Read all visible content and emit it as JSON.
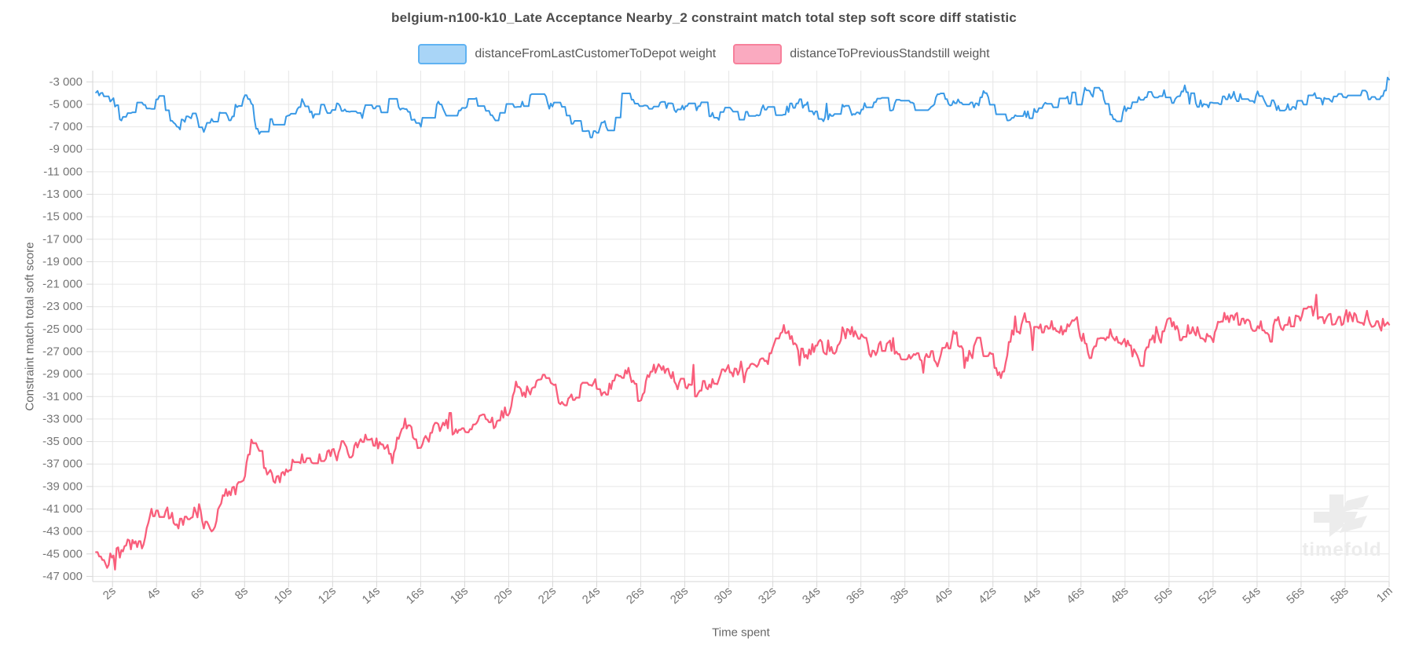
{
  "page": {
    "background": "#ffffff"
  },
  "chart_data": {
    "type": "line",
    "title": "belgium-n100-k10_Late Acceptance Nearby_2 constraint match total step soft score diff statistic",
    "xlabel": "Time spent",
    "ylabel": "Constraint match total soft score",
    "legend_position": "top",
    "grid": true,
    "watermark": "timefold",
    "colors": {
      "grid": "#e6e6e6",
      "axis_border": "#d6d6d6",
      "tick_label": "#757575",
      "watermark": "#ececec"
    },
    "x_domain_seconds": [
      1.1,
      60
    ],
    "y_domain": [
      -47460,
      -2000
    ],
    "t_start": 1.25,
    "x_ticks": {
      "values": [
        2,
        4,
        6,
        8,
        10,
        12,
        14,
        16,
        18,
        20,
        22,
        24,
        26,
        28,
        30,
        32,
        34,
        36,
        38,
        40,
        42,
        44,
        46,
        48,
        50,
        52,
        54,
        56,
        58,
        60
      ],
      "labels": [
        "2s",
        "4s",
        "6s",
        "8s",
        "10s",
        "12s",
        "14s",
        "16s",
        "18s",
        "20s",
        "22s",
        "24s",
        "26s",
        "28s",
        "30s",
        "32s",
        "34s",
        "36s",
        "38s",
        "40s",
        "42s",
        "44s",
        "46s",
        "48s",
        "50s",
        "52s",
        "54s",
        "56s",
        "58s",
        "1m"
      ]
    },
    "y_ticks": [
      -3000,
      -5000,
      -7000,
      -9000,
      -11000,
      -13000,
      -15000,
      -17000,
      -19000,
      -21000,
      -23000,
      -25000,
      -27000,
      -29000,
      -31000,
      -33000,
      -35000,
      -37000,
      -39000,
      -41000,
      -43000,
      -45000,
      -47000
    ],
    "series": [
      {
        "name": "distanceFromLastCustomerToDepot weight",
        "color": "#3999e6",
        "legend_fill": "#a9d5f7",
        "legend_border": "#5fb2f2",
        "line_width": 2,
        "noise_amp": 500,
        "hold_prob": 0.52,
        "seed": 11,
        "anchors": [
          [
            1.2,
            -4000
          ],
          [
            1.5,
            -3750
          ],
          [
            2.0,
            -4300
          ],
          [
            2.4,
            -6800
          ],
          [
            2.9,
            -5400
          ],
          [
            3.3,
            -5000
          ],
          [
            3.8,
            -5500
          ],
          [
            4.2,
            -4300
          ],
          [
            4.6,
            -6400
          ],
          [
            5.0,
            -7200
          ],
          [
            5.4,
            -5700
          ],
          [
            5.9,
            -6600
          ],
          [
            6.3,
            -7000
          ],
          [
            6.8,
            -5400
          ],
          [
            7.3,
            -5800
          ],
          [
            7.8,
            -4500
          ],
          [
            8.3,
            -4300
          ],
          [
            8.6,
            -7600
          ],
          [
            9.1,
            -6200
          ],
          [
            9.6,
            -6600
          ],
          [
            10.1,
            -5500
          ],
          [
            10.6,
            -4300
          ],
          [
            11.1,
            -6300
          ],
          [
            11.6,
            -5700
          ],
          [
            12.1,
            -4900
          ],
          [
            12.7,
            -5400
          ],
          [
            13.3,
            -5700
          ],
          [
            13.9,
            -5200
          ],
          [
            14.4,
            -4500
          ],
          [
            14.9,
            -5800
          ],
          [
            15.4,
            -5400
          ],
          [
            15.9,
            -6900
          ],
          [
            16.4,
            -5500
          ],
          [
            16.9,
            -4700
          ],
          [
            17.4,
            -6300
          ],
          [
            17.9,
            -5200
          ],
          [
            18.4,
            -4300
          ],
          [
            18.9,
            -6000
          ],
          [
            19.4,
            -6500
          ],
          [
            20.0,
            -5300
          ],
          [
            20.5,
            -4900
          ],
          [
            21.0,
            -4300
          ],
          [
            21.5,
            -3800
          ],
          [
            22.0,
            -5200
          ],
          [
            22.6,
            -6200
          ],
          [
            23.2,
            -7000
          ],
          [
            23.7,
            -7700
          ],
          [
            24.2,
            -6600
          ],
          [
            24.7,
            -7100
          ],
          [
            25.2,
            -4200
          ],
          [
            25.8,
            -5100
          ],
          [
            26.4,
            -5600
          ],
          [
            27.0,
            -5000
          ],
          [
            27.6,
            -5400
          ],
          [
            28.2,
            -5100
          ],
          [
            28.8,
            -5400
          ],
          [
            29.4,
            -6200
          ],
          [
            30.0,
            -5200
          ],
          [
            30.4,
            -6500
          ],
          [
            31.0,
            -5600
          ],
          [
            31.6,
            -5300
          ],
          [
            32.2,
            -5400
          ],
          [
            32.8,
            -5200
          ],
          [
            33.4,
            -5100
          ],
          [
            34.0,
            -5700
          ],
          [
            34.5,
            -6500
          ],
          [
            35.0,
            -5000
          ],
          [
            35.6,
            -5700
          ],
          [
            36.2,
            -5200
          ],
          [
            36.8,
            -4600
          ],
          [
            37.4,
            -5400
          ],
          [
            38.0,
            -4800
          ],
          [
            38.6,
            -5300
          ],
          [
            39.2,
            -4700
          ],
          [
            39.8,
            -4500
          ],
          [
            40.4,
            -4900
          ],
          [
            41.0,
            -4500
          ],
          [
            41.6,
            -4200
          ],
          [
            42.2,
            -5800
          ],
          [
            42.8,
            -6200
          ],
          [
            43.4,
            -5800
          ],
          [
            44.0,
            -5900
          ],
          [
            44.6,
            -5300
          ],
          [
            45.2,
            -4700
          ],
          [
            45.8,
            -5000
          ],
          [
            46.3,
            -3600
          ],
          [
            46.8,
            -3700
          ],
          [
            47.3,
            -6200
          ],
          [
            47.9,
            -5700
          ],
          [
            48.5,
            -4600
          ],
          [
            49.0,
            -3800
          ],
          [
            49.6,
            -3600
          ],
          [
            50.1,
            -4600
          ],
          [
            50.6,
            -3300
          ],
          [
            51.1,
            -4500
          ],
          [
            51.7,
            -5100
          ],
          [
            52.3,
            -4700
          ],
          [
            52.9,
            -4300
          ],
          [
            53.5,
            -4400
          ],
          [
            54.1,
            -4300
          ],
          [
            54.7,
            -4600
          ],
          [
            55.2,
            -5700
          ],
          [
            55.8,
            -4900
          ],
          [
            56.4,
            -4500
          ],
          [
            57.0,
            -4600
          ],
          [
            57.6,
            -4300
          ],
          [
            58.2,
            -4500
          ],
          [
            58.8,
            -4100
          ],
          [
            59.4,
            -4300
          ],
          [
            59.8,
            -3900
          ],
          [
            60.0,
            -2800
          ]
        ]
      },
      {
        "name": "distanceToPreviousStandstill weight",
        "color": "#f95e7b",
        "legend_fill": "#faaac0",
        "legend_border": "#f7809b",
        "line_width": 2.3,
        "noise_amp": 680,
        "hold_prob": 0.18,
        "seed": 3,
        "anchors": [
          [
            1.2,
            -44900
          ],
          [
            1.6,
            -45800
          ],
          [
            1.9,
            -46200
          ],
          [
            2.2,
            -45200
          ],
          [
            2.6,
            -44800
          ],
          [
            3.0,
            -43900
          ],
          [
            3.5,
            -44200
          ],
          [
            3.8,
            -40900
          ],
          [
            4.1,
            -42600
          ],
          [
            4.5,
            -41500
          ],
          [
            5.0,
            -42600
          ],
          [
            5.5,
            -41600
          ],
          [
            6.0,
            -40800
          ],
          [
            6.4,
            -43400
          ],
          [
            7.0,
            -39900
          ],
          [
            7.5,
            -39400
          ],
          [
            8.0,
            -38700
          ],
          [
            8.3,
            -35200
          ],
          [
            8.8,
            -36500
          ],
          [
            9.3,
            -38800
          ],
          [
            10.0,
            -37200
          ],
          [
            10.5,
            -36400
          ],
          [
            11.0,
            -37400
          ],
          [
            11.6,
            -36300
          ],
          [
            12.2,
            -36000
          ],
          [
            12.8,
            -35600
          ],
          [
            13.4,
            -34300
          ],
          [
            14.0,
            -35000
          ],
          [
            14.5,
            -36200
          ],
          [
            15.0,
            -34600
          ],
          [
            15.6,
            -33900
          ],
          [
            16.1,
            -35800
          ],
          [
            16.6,
            -33700
          ],
          [
            17.1,
            -33200
          ],
          [
            17.6,
            -34100
          ],
          [
            18.2,
            -33300
          ],
          [
            18.8,
            -32900
          ],
          [
            19.3,
            -33600
          ],
          [
            20.0,
            -31900
          ],
          [
            20.4,
            -30100
          ],
          [
            21.0,
            -30400
          ],
          [
            21.5,
            -29700
          ],
          [
            22.0,
            -30700
          ],
          [
            22.6,
            -31900
          ],
          [
            23.2,
            -30100
          ],
          [
            23.8,
            -29700
          ],
          [
            24.3,
            -30500
          ],
          [
            25.0,
            -29400
          ],
          [
            25.6,
            -29100
          ],
          [
            25.9,
            -31000
          ],
          [
            26.4,
            -29200
          ],
          [
            27.0,
            -28100
          ],
          [
            27.6,
            -29500
          ],
          [
            28.1,
            -30900
          ],
          [
            28.7,
            -29900
          ],
          [
            29.3,
            -29400
          ],
          [
            30.0,
            -29000
          ],
          [
            30.6,
            -28300
          ],
          [
            31.2,
            -28700
          ],
          [
            31.8,
            -27400
          ],
          [
            32.3,
            -24900
          ],
          [
            32.8,
            -25700
          ],
          [
            33.3,
            -27000
          ],
          [
            34.0,
            -26700
          ],
          [
            34.6,
            -27300
          ],
          [
            35.2,
            -25000
          ],
          [
            35.7,
            -25400
          ],
          [
            36.3,
            -26700
          ],
          [
            37.0,
            -26900
          ],
          [
            37.7,
            -27000
          ],
          [
            38.4,
            -27300
          ],
          [
            39.0,
            -27000
          ],
          [
            39.6,
            -27400
          ],
          [
            40.2,
            -25600
          ],
          [
            40.8,
            -27000
          ],
          [
            41.4,
            -26600
          ],
          [
            42.0,
            -28100
          ],
          [
            42.4,
            -29300
          ],
          [
            43.0,
            -24700
          ],
          [
            43.5,
            -24200
          ],
          [
            44.0,
            -25400
          ],
          [
            44.6,
            -24800
          ],
          [
            45.2,
            -25400
          ],
          [
            45.8,
            -24900
          ],
          [
            46.4,
            -26800
          ],
          [
            47.0,
            -25700
          ],
          [
            47.6,
            -25100
          ],
          [
            48.2,
            -26400
          ],
          [
            48.7,
            -27700
          ],
          [
            49.3,
            -26100
          ],
          [
            50.0,
            -24900
          ],
          [
            50.6,
            -25500
          ],
          [
            51.2,
            -24800
          ],
          [
            52.0,
            -25300
          ],
          [
            52.6,
            -24600
          ],
          [
            53.2,
            -24400
          ],
          [
            54.0,
            -24400
          ],
          [
            54.6,
            -25200
          ],
          [
            55.2,
            -24600
          ],
          [
            56.0,
            -23900
          ],
          [
            56.6,
            -23400
          ],
          [
            57.2,
            -24400
          ],
          [
            58.0,
            -24100
          ],
          [
            58.6,
            -23700
          ],
          [
            59.3,
            -24100
          ],
          [
            60.0,
            -24600
          ]
        ]
      }
    ]
  }
}
